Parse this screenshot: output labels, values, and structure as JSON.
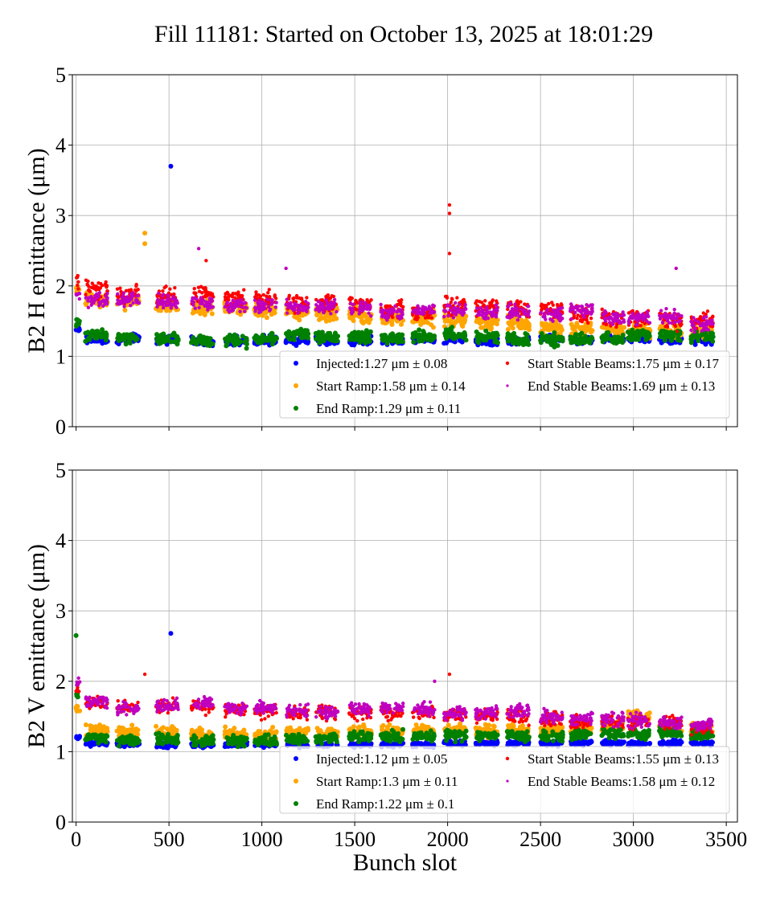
{
  "title": "Fill 11181: Started on October 13, 2025 at 18:01:29",
  "colors": {
    "Injected": "#0000ff",
    "Start Ramp": "#ffa500",
    "End Ramp": "#008000",
    "Start Stable Beams": "#ff0000",
    "End Stable Beams": "#c000c0"
  },
  "chart_data": [
    {
      "type": "scatter",
      "ylabel": "B2 H emittance (μm)",
      "xlabel": "",
      "xlim": [
        -20,
        3560
      ],
      "ylim": [
        0,
        5
      ],
      "yticks": [
        "0",
        "1",
        "2",
        "3",
        "4",
        "5"
      ],
      "xticks": [
        0,
        500,
        1000,
        1500,
        2000,
        2500,
        3000,
        3500
      ],
      "xtick_labels_shown": false,
      "grid": true,
      "legend_position": "lower-right",
      "legend": [
        {
          "series": "Injected",
          "label": "Injected:1.27 μm ± 0.08"
        },
        {
          "series": "Start Stable Beams",
          "label": "Start Stable Beams:1.75 μm ± 0.17"
        },
        {
          "series": "Start Ramp",
          "label": "Start Ramp:1.58 μm ± 0.14"
        },
        {
          "series": "End Stable Beams",
          "label": "End Stable Beams:1.69 μm ± 0.13"
        },
        {
          "series": "End Ramp",
          "label": "End Ramp:1.29 μm ± 0.11"
        }
      ],
      "train_slots": [
        10,
        110,
        280,
        490,
        680,
        860,
        1020,
        1190,
        1350,
        1530,
        1700,
        1870,
        2040,
        2210,
        2380,
        2560,
        2720,
        2890,
        3030,
        3200,
        3370
      ],
      "series": [
        {
          "name": "Injected",
          "std": 0.08,
          "values": [
            1.38,
            1.24,
            1.25,
            1.24,
            1.22,
            1.22,
            1.23,
            1.22,
            1.22,
            1.22,
            1.22,
            1.23,
            1.24,
            1.22,
            1.23,
            1.25,
            1.24,
            1.26,
            1.25,
            1.24,
            1.24
          ],
          "outliers": [
            [
              510,
              3.7
            ]
          ]
        },
        {
          "name": "Start Ramp",
          "std": 0.14,
          "values": [
            2.0,
            1.8,
            1.78,
            1.72,
            1.7,
            1.68,
            1.66,
            1.62,
            1.6,
            1.58,
            1.55,
            1.55,
            1.52,
            1.48,
            1.46,
            1.42,
            1.4,
            1.38,
            1.37,
            1.36,
            1.36
          ],
          "outliers": [
            [
              370,
              2.75
            ],
            [
              370,
              2.6
            ]
          ]
        },
        {
          "name": "End Ramp",
          "std": 0.11,
          "values": [
            1.45,
            1.3,
            1.27,
            1.25,
            1.22,
            1.22,
            1.25,
            1.3,
            1.27,
            1.28,
            1.27,
            1.28,
            1.32,
            1.27,
            1.24,
            1.23,
            1.24,
            1.25,
            1.3,
            1.3,
            1.28
          ],
          "outliers": []
        },
        {
          "name": "Start Stable Beams",
          "std": 0.17,
          "values": [
            2.05,
            1.95,
            1.9,
            1.85,
            1.88,
            1.82,
            1.8,
            1.75,
            1.78,
            1.75,
            1.68,
            1.62,
            1.7,
            1.7,
            1.68,
            1.66,
            1.6,
            1.55,
            1.55,
            1.52,
            1.5
          ],
          "outliers": [
            [
              2010,
              3.15
            ],
            [
              2010,
              3.03
            ],
            [
              2010,
              2.46
            ],
            [
              700,
              2.36
            ]
          ]
        },
        {
          "name": "End Stable Beams",
          "std": 0.13,
          "values": [
            1.9,
            1.8,
            1.8,
            1.78,
            1.75,
            1.72,
            1.72,
            1.7,
            1.7,
            1.68,
            1.62,
            1.65,
            1.65,
            1.62,
            1.62,
            1.6,
            1.65,
            1.55,
            1.55,
            1.55,
            1.45
          ],
          "outliers": [
            [
              660,
              2.53
            ],
            [
              3230,
              2.25
            ],
            [
              1130,
              2.25
            ]
          ]
        }
      ]
    },
    {
      "type": "scatter",
      "ylabel": "B2 V emittance (μm)",
      "xlabel": "Bunch slot",
      "xlim": [
        -20,
        3560
      ],
      "ylim": [
        0,
        5
      ],
      "yticks": [
        "0",
        "1",
        "2",
        "3",
        "4",
        "5"
      ],
      "xticks": [
        0,
        500,
        1000,
        1500,
        2000,
        2500,
        3000,
        3500
      ],
      "xtick_labels": [
        "0",
        "500",
        "1000",
        "1500",
        "2000",
        "2500",
        "3000",
        "3500"
      ],
      "grid": true,
      "legend_position": "lower-right",
      "legend": [
        {
          "series": "Injected",
          "label": "Injected:1.12 μm ± 0.05"
        },
        {
          "series": "Start Stable Beams",
          "label": "Start Stable Beams:1.55 μm ± 0.13"
        },
        {
          "series": "Start Ramp",
          "label": "Start Ramp:1.3 μm ± 0.11"
        },
        {
          "series": "End Stable Beams",
          "label": "End Stable Beams:1.58 μm ± 0.12"
        },
        {
          "series": "End Ramp",
          "label": "End Ramp:1.22 μm ± 0.1"
        }
      ],
      "train_slots": [
        10,
        110,
        280,
        490,
        680,
        860,
        1020,
        1190,
        1350,
        1530,
        1700,
        1870,
        2040,
        2210,
        2380,
        2560,
        2720,
        2890,
        3030,
        3200,
        3370
      ],
      "series": [
        {
          "name": "Injected",
          "std": 0.05,
          "values": [
            1.2,
            1.12,
            1.1,
            1.1,
            1.1,
            1.1,
            1.1,
            1.1,
            1.1,
            1.1,
            1.1,
            1.1,
            1.12,
            1.12,
            1.12,
            1.12,
            1.12,
            1.12,
            1.12,
            1.12,
            1.12
          ],
          "outliers": [
            [
              510,
              2.68
            ]
          ]
        },
        {
          "name": "Start Ramp",
          "std": 0.11,
          "values": [
            1.6,
            1.3,
            1.28,
            1.27,
            1.25,
            1.25,
            1.25,
            1.27,
            1.27,
            1.28,
            1.3,
            1.3,
            1.3,
            1.3,
            1.3,
            1.32,
            1.33,
            1.35,
            1.5,
            1.38,
            1.3
          ],
          "outliers": []
        },
        {
          "name": "End Ramp",
          "std": 0.1,
          "values": [
            1.8,
            1.2,
            1.16,
            1.18,
            1.16,
            1.15,
            1.16,
            1.18,
            1.2,
            1.22,
            1.22,
            1.22,
            1.24,
            1.22,
            1.22,
            1.22,
            1.25,
            1.25,
            1.27,
            1.27,
            1.25
          ],
          "outliers": [
            [
              0,
              2.65
            ]
          ]
        },
        {
          "name": "Start Stable Beams",
          "std": 0.13,
          "values": [
            1.9,
            1.7,
            1.62,
            1.65,
            1.65,
            1.6,
            1.58,
            1.55,
            1.55,
            1.55,
            1.55,
            1.55,
            1.52,
            1.5,
            1.5,
            1.45,
            1.42,
            1.42,
            1.42,
            1.4,
            1.35
          ],
          "outliers": [
            [
              2010,
              2.1
            ],
            [
              370,
              2.1
            ]
          ]
        },
        {
          "name": "End Stable Beams",
          "std": 0.12,
          "values": [
            2.0,
            1.72,
            1.62,
            1.65,
            1.68,
            1.62,
            1.62,
            1.58,
            1.55,
            1.6,
            1.62,
            1.6,
            1.55,
            1.55,
            1.58,
            1.5,
            1.48,
            1.45,
            1.45,
            1.42,
            1.38
          ],
          "outliers": [
            [
              1930,
              2.0
            ]
          ]
        }
      ]
    }
  ]
}
